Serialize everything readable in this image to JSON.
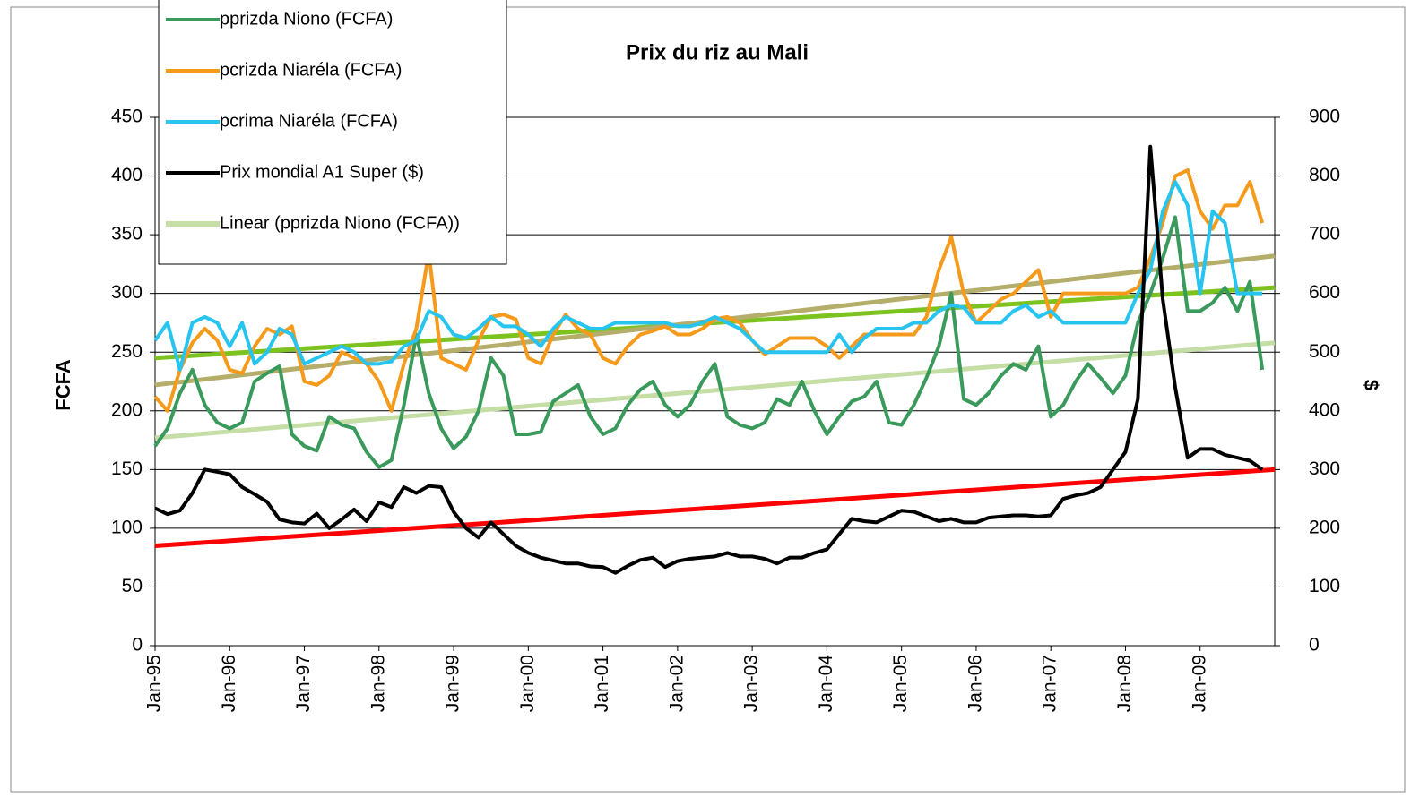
{
  "chart_data": {
    "type": "line",
    "title": "Prix du riz au Mali",
    "y_label": "FCFA",
    "y2_label": "$",
    "categories": [
      "Jan-95",
      null,
      null,
      null,
      null,
      null,
      "Jan-96",
      null,
      null,
      null,
      null,
      null,
      "Jan-97",
      null,
      null,
      null,
      null,
      null,
      "Jan-98",
      null,
      null,
      null,
      null,
      null,
      "Jan-99",
      null,
      null,
      null,
      null,
      null,
      "Jan-00",
      null,
      null,
      null,
      null,
      null,
      "Jan-01",
      null,
      null,
      null,
      null,
      null,
      "Jan-02",
      null,
      null,
      null,
      null,
      null,
      "Jan-03",
      null,
      null,
      null,
      null,
      null,
      "Jan-04",
      null,
      null,
      null,
      null,
      null,
      "Jan-05",
      null,
      null,
      null,
      null,
      null,
      "Jan-06",
      null,
      null,
      null,
      null,
      null,
      "Jan-07",
      null,
      null,
      null,
      null,
      null,
      "Jan-08",
      null,
      null,
      null,
      null,
      null,
      "Jan-09",
      null,
      null,
      null,
      null,
      null
    ],
    "ylim": [
      0,
      450
    ],
    "yticks": [
      0,
      50,
      100,
      150,
      200,
      250,
      300,
      350,
      400,
      450
    ],
    "y2lim": [
      0,
      900
    ],
    "y2ticks": [
      0,
      100,
      200,
      300,
      400,
      500,
      600,
      700,
      800,
      900
    ],
    "grid": true,
    "legend": "top-left",
    "series": [
      {
        "name": "pprizda Niono (FCFA)",
        "color": "#3a9a5c",
        "values": [
          170,
          185,
          215,
          235,
          205,
          190,
          185,
          190,
          225,
          232,
          238,
          180,
          170,
          166,
          195,
          188,
          185,
          165,
          152,
          158,
          205,
          265,
          215,
          185,
          168,
          178,
          200,
          245,
          230,
          180,
          180,
          182,
          208,
          215,
          222,
          195,
          180,
          185,
          205,
          218,
          225,
          205,
          195,
          205,
          225,
          240,
          195,
          188,
          185,
          190,
          210,
          205,
          225,
          200,
          180,
          195,
          208,
          212,
          225,
          190,
          188,
          205,
          228,
          255,
          300,
          210,
          205,
          215,
          230,
          240,
          235,
          255,
          195,
          205,
          225,
          240,
          228,
          215,
          230,
          275,
          300,
          330,
          365,
          285,
          285,
          292,
          305,
          285,
          310,
          235
        ]
      },
      {
        "name": "pcrizda Niaréla (FCFA)",
        "color": "#f59a1b",
        "values": [
          212,
          200,
          235,
          258,
          270,
          260,
          235,
          232,
          255,
          270,
          265,
          272,
          225,
          222,
          230,
          250,
          245,
          240,
          225,
          200,
          240,
          270,
          335,
          245,
          240,
          235,
          260,
          280,
          282,
          278,
          245,
          240,
          265,
          282,
          270,
          265,
          245,
          240,
          255,
          265,
          268,
          272,
          265,
          265,
          270,
          278,
          280,
          275,
          260,
          248,
          255,
          262,
          262,
          262,
          255,
          245,
          255,
          265,
          265,
          265,
          265,
          265,
          280,
          320,
          348,
          300,
          275,
          285,
          295,
          300,
          310,
          320,
          280,
          300,
          300,
          300,
          300,
          300,
          300,
          305,
          330,
          360,
          400,
          405,
          370,
          355,
          375,
          375,
          395,
          360
        ]
      },
      {
        "name": "pcrima Niaréla (FCFA)",
        "color": "#27c4ef",
        "values": [
          260,
          275,
          235,
          275,
          280,
          275,
          255,
          275,
          240,
          250,
          270,
          265,
          240,
          245,
          250,
          255,
          250,
          240,
          240,
          242,
          255,
          260,
          285,
          280,
          265,
          262,
          270,
          280,
          272,
          272,
          265,
          255,
          270,
          280,
          275,
          270,
          270,
          275,
          275,
          275,
          275,
          275,
          272,
          272,
          275,
          280,
          275,
          270,
          260,
          250,
          250,
          250,
          250,
          250,
          250,
          265,
          250,
          262,
          270,
          270,
          270,
          275,
          275,
          285,
          290,
          288,
          275,
          275,
          275,
          285,
          290,
          280,
          285,
          275,
          275,
          275,
          275,
          275,
          275,
          300,
          320,
          370,
          395,
          375,
          300,
          370,
          360,
          300,
          300,
          300
        ]
      },
      {
        "name": "Prix mondial A1 Super ($)",
        "color": "#000000",
        "axis": "y2",
        "values": [
          234,
          224,
          230,
          260,
          300,
          296,
          292,
          270,
          258,
          245,
          215,
          210,
          208,
          225,
          200,
          215,
          232,
          212,
          244,
          236,
          270,
          260,
          272,
          270,
          228,
          200,
          184,
          210,
          190,
          170,
          158,
          150,
          145,
          140,
          140,
          135,
          134,
          124,
          136,
          146,
          150,
          134,
          144,
          148,
          150,
          152,
          158,
          152,
          152,
          148,
          140,
          150,
          150,
          158,
          164,
          190,
          216,
          212,
          210,
          220,
          230,
          228,
          220,
          212,
          216,
          210,
          210,
          218,
          220,
          222,
          222,
          220,
          222,
          250,
          256,
          260,
          270,
          300,
          330,
          420,
          850,
          590,
          440,
          320,
          335,
          335,
          325,
          320,
          315,
          300
        ]
      }
    ],
    "trendlines": [
      {
        "name": "Linear (pprizda Niono (FCFA))",
        "color": "#c5dea5",
        "values": [
          177,
          258
        ]
      },
      {
        "color": "#7dc31f",
        "values": [
          245,
          305
        ]
      },
      {
        "color": "#b5ad6a",
        "values": [
          222,
          332
        ]
      },
      {
        "color": "#ff0000",
        "axis": "y2",
        "values": [
          170,
          300
        ]
      }
    ]
  }
}
